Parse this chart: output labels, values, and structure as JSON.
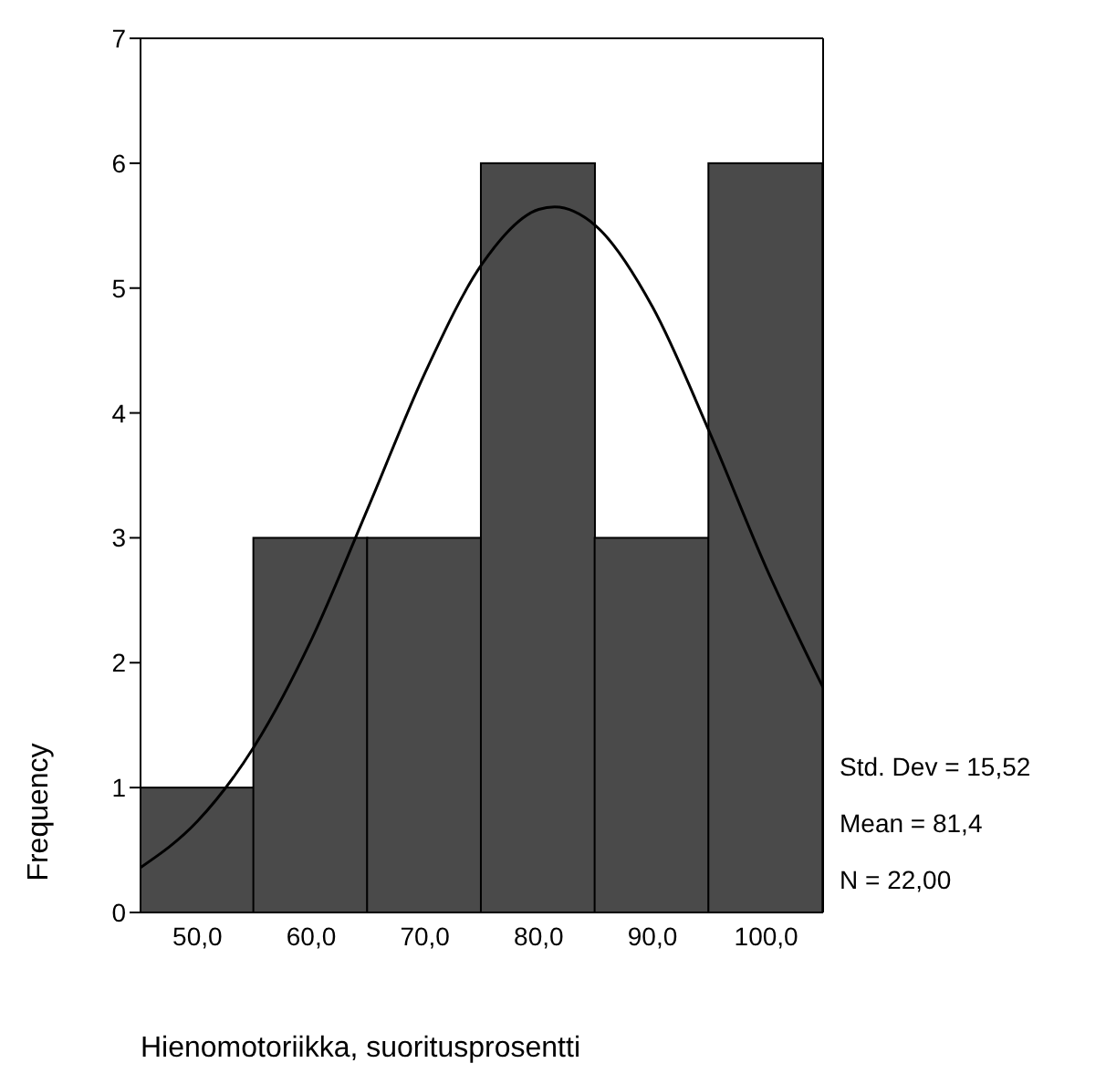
{
  "chart_data": {
    "type": "histogram",
    "xlabel": "Hienomotoriikka, suoritusprosentti",
    "ylabel": "Frequency",
    "bins": [
      45,
      55,
      65,
      75,
      85,
      95,
      105
    ],
    "values": [
      1,
      3,
      3,
      6,
      3,
      6
    ],
    "color": "#4a4a4a",
    "series": [
      {
        "type": "line",
        "color": "#000000",
        "x": [
          45,
          50,
          55,
          60,
          65,
          70,
          75,
          80,
          81.4,
          85,
          90,
          95,
          100,
          105
        ],
        "values": [
          0.36,
          0.73,
          1.33,
          2.18,
          3.24,
          4.32,
          5.19,
          5.63,
          5.65,
          5.5,
          4.85,
          3.85,
          2.76,
          1.8
        ]
      }
    ],
    "xlim": [
      45,
      105
    ],
    "xticks": [
      {
        "value": 50,
        "label": "50,0"
      },
      {
        "value": 60,
        "label": "60,0"
      },
      {
        "value": 70,
        "label": "70,0"
      },
      {
        "value": 80,
        "label": "80,0"
      },
      {
        "value": 90,
        "label": "90,0"
      },
      {
        "value": 100,
        "label": "100,0"
      }
    ],
    "ylim": [
      0,
      7
    ],
    "yticks": [
      0,
      1,
      2,
      3,
      4,
      5,
      6,
      7
    ],
    "annotations": [
      "Std. Dev = 15,52",
      "Mean = 81,4",
      "N = 22,00"
    ],
    "grid": false,
    "legend": false
  }
}
